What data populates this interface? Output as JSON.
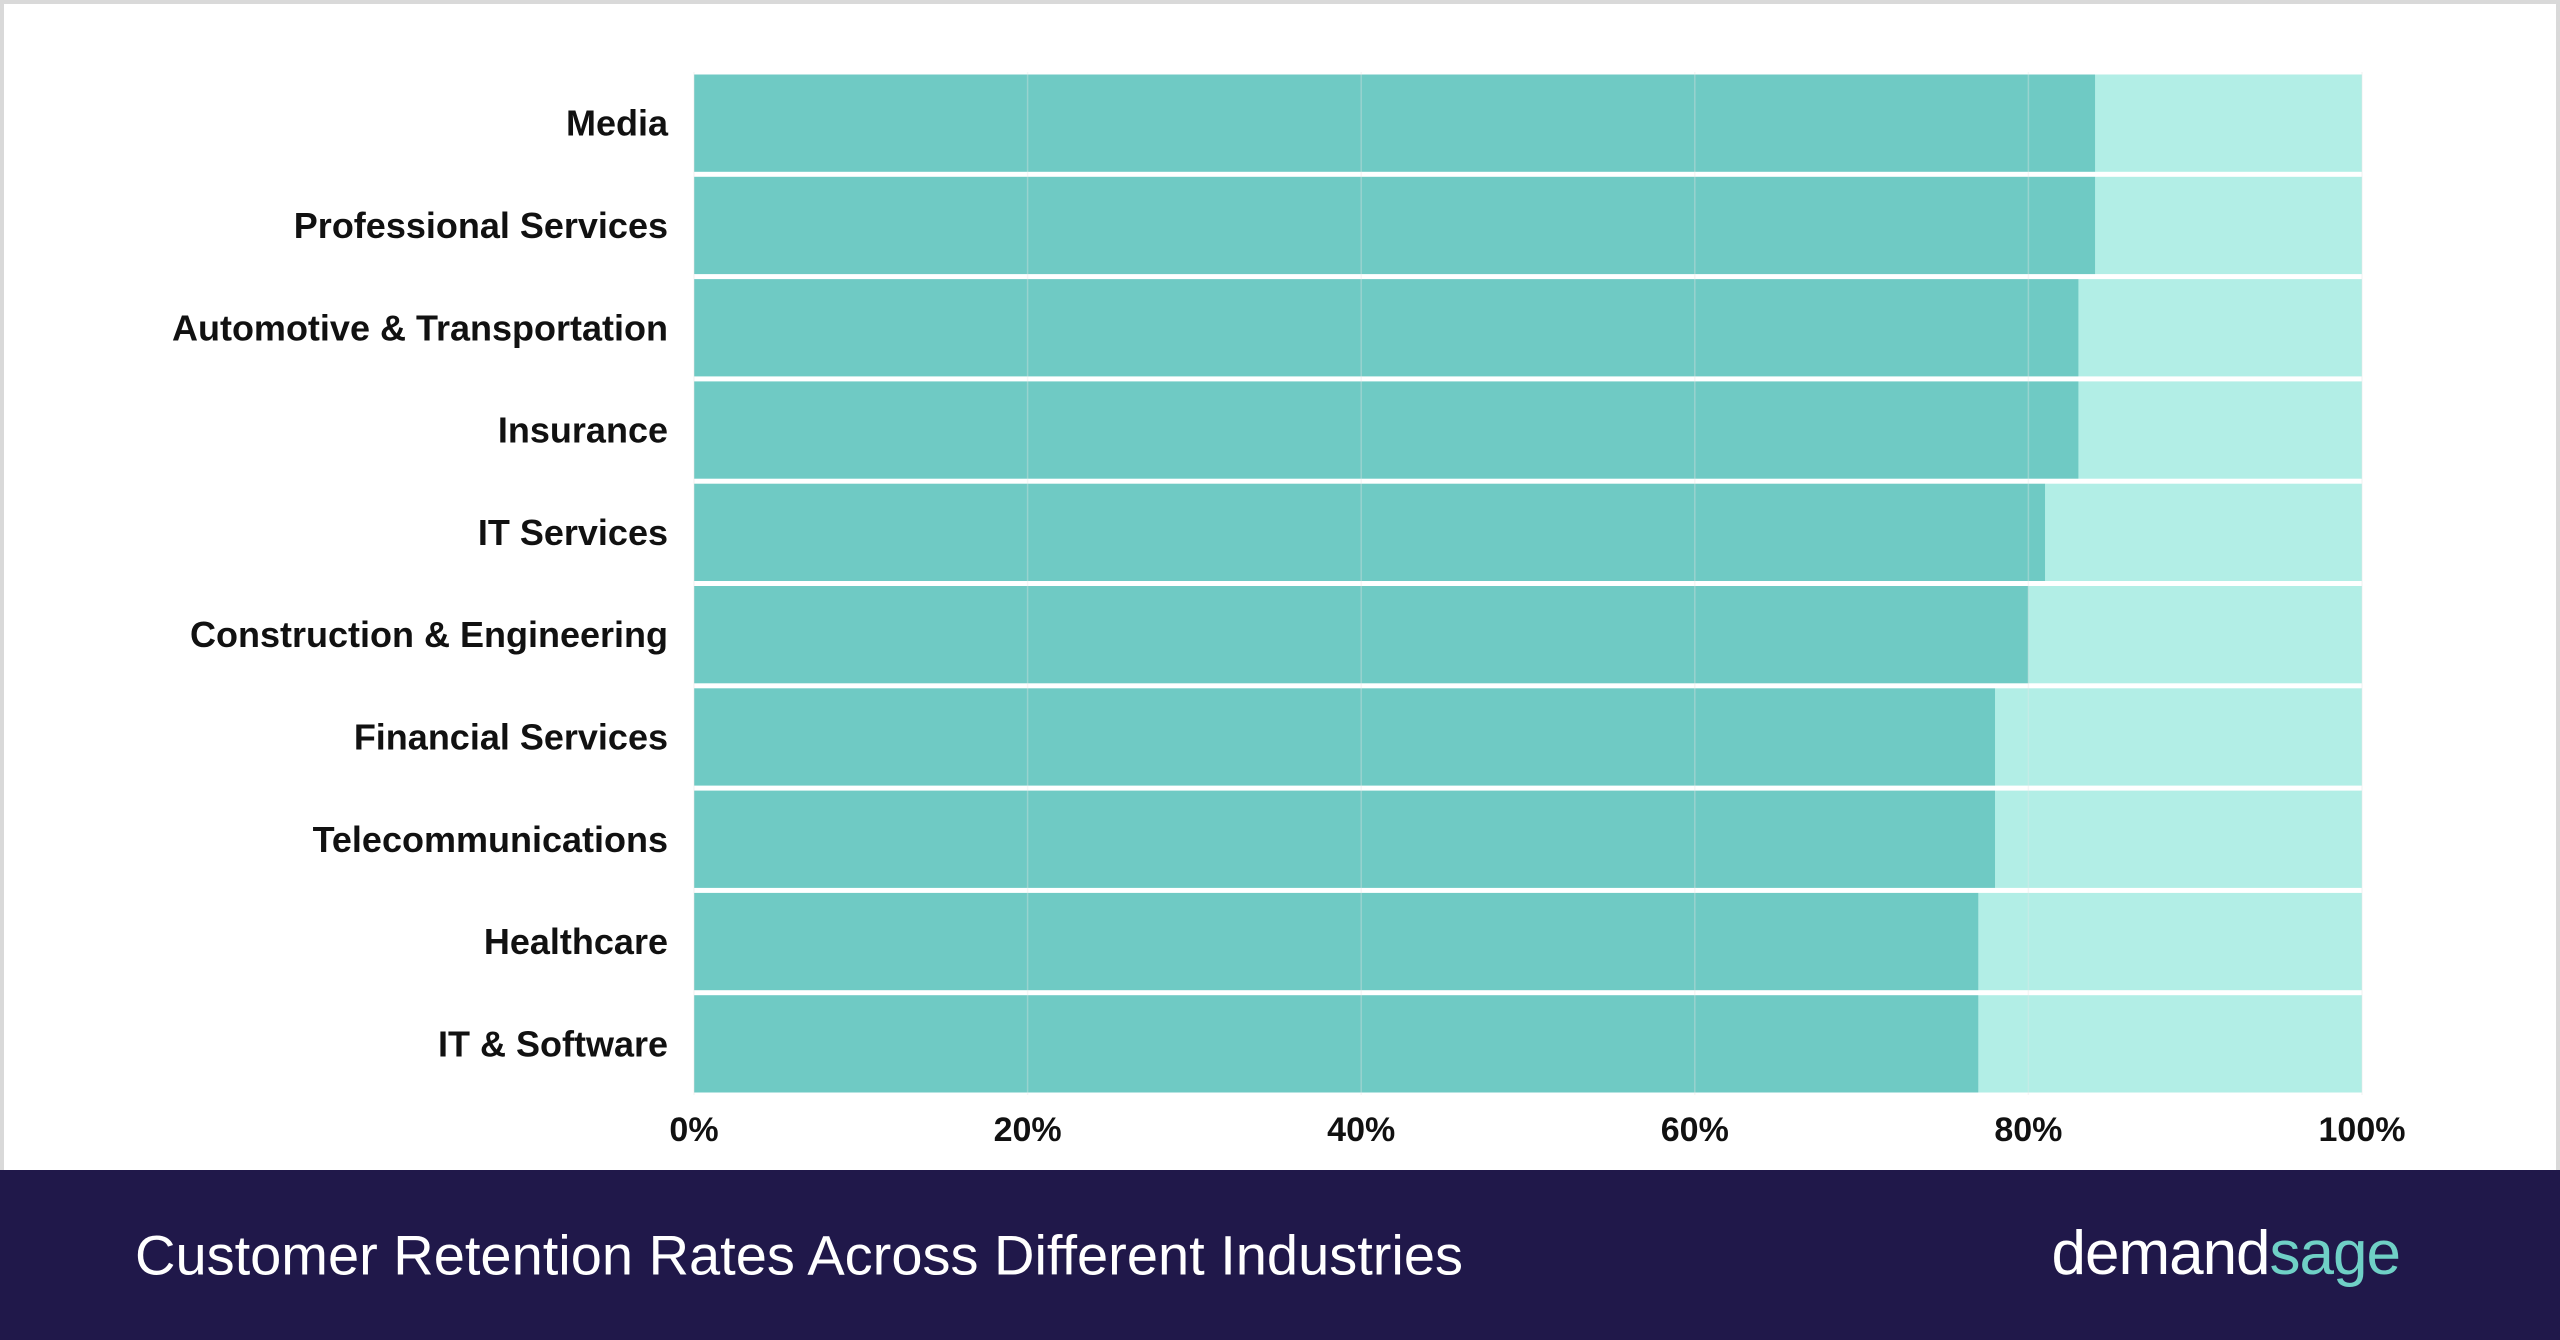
{
  "chart_data": {
    "type": "bar",
    "orientation": "horizontal",
    "stacked_to_100": true,
    "categories": [
      "Media",
      "Professional Services",
      "Automotive & Transportation",
      "Insurance",
      "IT Services",
      "Construction & Engineering",
      "Financial Services",
      "Telecommunications",
      "Healthcare",
      "IT & Software"
    ],
    "values": [
      84,
      84,
      83,
      83,
      81,
      80,
      78,
      78,
      77,
      77
    ],
    "xlim": [
      0,
      100
    ],
    "x_ticks": [
      "0%",
      "20%",
      "40%",
      "60%",
      "80%",
      "100%"
    ],
    "xlabel": "",
    "ylabel": "",
    "grid": true,
    "colors": {
      "value": "#6fcac4",
      "remainder": "#b2eee6",
      "grid": "#e6e6e6"
    }
  },
  "footer": {
    "title": "Customer Retention Rates Across Different Industries",
    "brand_part1": "demand",
    "brand_part2": "sage"
  },
  "colors": {
    "footer_bg": "#20184a",
    "brand_accent": "#6fd0c6"
  }
}
